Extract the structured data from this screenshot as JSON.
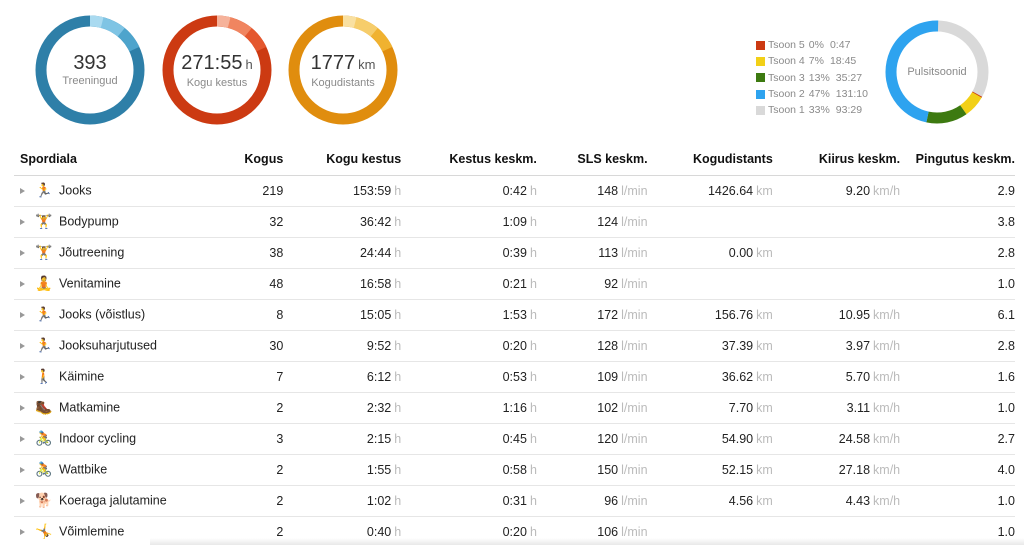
{
  "summary": {
    "workouts": {
      "value": "393",
      "label": "Treeningud",
      "colors": [
        "#2e7fa8",
        "#4ea4cc",
        "#7fc4e4",
        "#a9daf0"
      ]
    },
    "duration": {
      "value": "271:55",
      "unit": "h",
      "label": "Kogu kestus",
      "colors": [
        "#cc3a12",
        "#e4572e",
        "#f08560",
        "#f6b29a"
      ]
    },
    "distance": {
      "value": "1777",
      "unit": "km",
      "label": "Kogudistants",
      "colors": [
        "#e08d0e",
        "#f0b230",
        "#f6cd6b",
        "#f9e0a1"
      ]
    }
  },
  "heart_rate_zones": {
    "label": "Pulsitsoonid",
    "zones": [
      {
        "name": "Tsoon 5",
        "percent": "0%",
        "time": "0:47",
        "fraction": 0.003,
        "color": "#cc3a12"
      },
      {
        "name": "Tsoon 4",
        "percent": "7%",
        "time": "18:45",
        "fraction": 0.07,
        "color": "#f2d017"
      },
      {
        "name": "Tsoon 3",
        "percent": "13%",
        "time": "35:27",
        "fraction": 0.13,
        "color": "#3d7a10"
      },
      {
        "name": "Tsoon 2",
        "percent": "47%",
        "time": "131:10",
        "fraction": 0.47,
        "color": "#2ea3ef"
      },
      {
        "name": "Tsoon 1",
        "percent": "33%",
        "time": "93:29",
        "fraction": 0.33,
        "color": "#d9d9d9"
      }
    ]
  },
  "table": {
    "headers": [
      "Spordiala",
      "Kogus",
      "Kogu kestus",
      "Kestus keskm.",
      "SLS keskm.",
      "Kogudistants",
      "Kiirus keskm.",
      "Pingutus keskm."
    ],
    "units": {
      "h": "h",
      "min": "l/min",
      "km": "km",
      "kmh": "km/h"
    },
    "rows": [
      {
        "icon": "running-icon",
        "sport": "Jooks",
        "count": "219",
        "total": "153:59",
        "avg": "0:42",
        "hr": "148",
        "dist": "1426.64",
        "speed": "9.20",
        "effort": "2.9"
      },
      {
        "icon": "weightlifting-icon",
        "sport": "Bodypump",
        "count": "32",
        "total": "36:42",
        "avg": "1:09",
        "hr": "124",
        "dist": "",
        "speed": "",
        "effort": "3.8"
      },
      {
        "icon": "weightlifting-icon",
        "sport": "Jõutreening",
        "count": "38",
        "total": "24:44",
        "avg": "0:39",
        "hr": "113",
        "dist": "0.00",
        "speed": "",
        "effort": "2.8"
      },
      {
        "icon": "stretching-icon",
        "sport": "Venitamine",
        "count": "48",
        "total": "16:58",
        "avg": "0:21",
        "hr": "92",
        "dist": "",
        "speed": "",
        "effort": "1.0"
      },
      {
        "icon": "running-icon",
        "sport": "Jooks (võistlus)",
        "count": "8",
        "total": "15:05",
        "avg": "1:53",
        "hr": "172",
        "dist": "156.76",
        "speed": "10.95",
        "effort": "6.1"
      },
      {
        "icon": "running-icon",
        "sport": "Jooksuharjutused",
        "count": "30",
        "total": "9:52",
        "avg": "0:20",
        "hr": "128",
        "dist": "37.39",
        "speed": "3.97",
        "effort": "2.8"
      },
      {
        "icon": "walking-icon",
        "sport": "Käimine",
        "count": "7",
        "total": "6:12",
        "avg": "0:53",
        "hr": "109",
        "dist": "36.62",
        "speed": "5.70",
        "effort": "1.6"
      },
      {
        "icon": "hiking-icon",
        "sport": "Matkamine",
        "count": "2",
        "total": "2:32",
        "avg": "1:16",
        "hr": "102",
        "dist": "7.70",
        "speed": "3.11",
        "effort": "1.0"
      },
      {
        "icon": "cycling-icon",
        "sport": "Indoor cycling",
        "count": "3",
        "total": "2:15",
        "avg": "0:45",
        "hr": "120",
        "dist": "54.90",
        "speed": "24.58",
        "effort": "2.7"
      },
      {
        "icon": "cycling-icon",
        "sport": "Wattbike",
        "count": "2",
        "total": "1:55",
        "avg": "0:58",
        "hr": "150",
        "dist": "52.15",
        "speed": "27.18",
        "effort": "4.0"
      },
      {
        "icon": "dog-walking-icon",
        "sport": "Koeraga jalutamine",
        "count": "2",
        "total": "1:02",
        "avg": "0:31",
        "hr": "96",
        "dist": "4.56",
        "speed": "4.43",
        "effort": "1.0"
      },
      {
        "icon": "gymnastics-icon",
        "sport": "Võimlemine",
        "count": "2",
        "total": "0:40",
        "avg": "0:20",
        "hr": "106",
        "dist": "",
        "speed": "",
        "effort": "1.0"
      }
    ]
  }
}
